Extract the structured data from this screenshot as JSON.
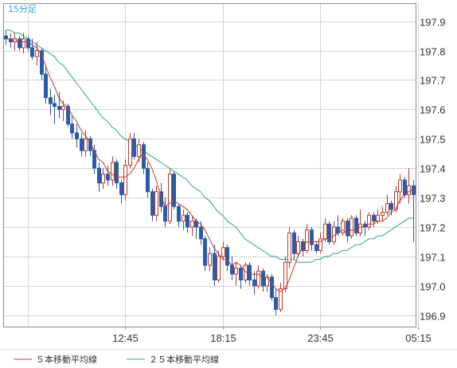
{
  "chart_data": {
    "type": "candlestick",
    "timeframe": "15分足",
    "x_tick_labels": [
      "12:45",
      "18:15",
      "23:45",
      "05:15"
    ],
    "y_tick_labels": [
      "197.9",
      "197.8",
      "197.7",
      "197.6",
      "197.5",
      "197.4",
      "197.3",
      "197.2",
      "197.1",
      "197.0",
      "196.9"
    ],
    "ylim": [
      196.86,
      197.96
    ],
    "grid": true,
    "legend_position": "bottom-left",
    "colors": {
      "up": "#c0392b",
      "down": "#2a5ca8",
      "ma5": "#c0392b",
      "ma25": "#2aa77f",
      "grid": "#d4d4d4",
      "frame": "#888888"
    },
    "series": [
      {
        "name": "５本移動平均線",
        "color": "#c0392b"
      },
      {
        "name": "２５本移動平均線",
        "color": "#2aa77f"
      }
    ],
    "candles": [
      [
        197.85,
        197.87,
        197.82,
        197.84
      ],
      [
        197.84,
        197.86,
        197.81,
        197.83
      ],
      [
        197.83,
        197.86,
        197.8,
        197.84
      ],
      [
        197.84,
        197.85,
        197.8,
        197.81
      ],
      [
        197.81,
        197.86,
        197.79,
        197.84
      ],
      [
        197.84,
        197.85,
        197.8,
        197.81
      ],
      [
        197.81,
        197.84,
        197.77,
        197.78
      ],
      [
        197.78,
        197.83,
        197.75,
        197.8
      ],
      [
        197.8,
        197.81,
        197.7,
        197.72
      ],
      [
        197.72,
        197.75,
        197.62,
        197.64
      ],
      [
        197.64,
        197.67,
        197.58,
        197.62
      ],
      [
        197.62,
        197.65,
        197.55,
        197.61
      ],
      [
        197.61,
        197.66,
        197.57,
        197.6
      ],
      [
        197.6,
        197.63,
        197.56,
        197.61
      ],
      [
        197.61,
        197.62,
        197.54,
        197.55
      ],
      [
        197.55,
        197.58,
        197.5,
        197.52
      ],
      [
        197.52,
        197.55,
        197.47,
        197.5
      ],
      [
        197.5,
        197.52,
        197.44,
        197.46
      ],
      [
        197.46,
        197.53,
        197.44,
        197.5
      ],
      [
        197.5,
        197.51,
        197.44,
        197.46
      ],
      [
        197.46,
        197.48,
        197.38,
        197.4
      ],
      [
        197.4,
        197.42,
        197.32,
        197.35
      ],
      [
        197.35,
        197.4,
        197.33,
        197.38
      ],
      [
        197.38,
        197.41,
        197.34,
        197.36
      ],
      [
        197.36,
        197.44,
        197.34,
        197.42
      ],
      [
        197.42,
        197.43,
        197.33,
        197.35
      ],
      [
        197.35,
        197.36,
        197.28,
        197.31
      ],
      [
        197.31,
        197.43,
        197.29,
        197.41
      ],
      [
        197.41,
        197.52,
        197.4,
        197.5
      ],
      [
        197.5,
        197.52,
        197.43,
        197.44
      ],
      [
        197.44,
        197.5,
        197.42,
        197.48
      ],
      [
        197.48,
        197.49,
        197.38,
        197.4
      ],
      [
        197.4,
        197.42,
        197.3,
        197.32
      ],
      [
        197.32,
        197.33,
        197.22,
        197.24
      ],
      [
        197.24,
        197.34,
        197.22,
        197.32
      ],
      [
        197.32,
        197.35,
        197.25,
        197.27
      ],
      [
        197.27,
        197.3,
        197.2,
        197.22
      ],
      [
        197.22,
        197.4,
        197.21,
        197.38
      ],
      [
        197.38,
        197.39,
        197.26,
        197.27
      ],
      [
        197.27,
        197.28,
        197.2,
        197.22
      ],
      [
        197.22,
        197.26,
        197.19,
        197.24
      ],
      [
        197.24,
        197.25,
        197.18,
        197.2
      ],
      [
        197.2,
        197.24,
        197.17,
        197.22
      ],
      [
        197.22,
        197.23,
        197.16,
        197.2
      ],
      [
        197.2,
        197.22,
        197.14,
        197.16
      ],
      [
        197.16,
        197.17,
        197.05,
        197.07
      ],
      [
        197.07,
        197.13,
        197.05,
        197.11
      ],
      [
        197.11,
        197.14,
        197.0,
        197.02
      ],
      [
        197.02,
        197.12,
        197.01,
        197.1
      ],
      [
        197.1,
        197.15,
        197.09,
        197.13
      ],
      [
        197.13,
        197.14,
        197.05,
        197.07
      ],
      [
        197.07,
        197.1,
        197.02,
        197.04
      ],
      [
        197.04,
        197.08,
        197.0,
        197.06
      ],
      [
        197.06,
        197.07,
        196.99,
        197.02
      ],
      [
        197.02,
        197.08,
        197.01,
        197.07
      ],
      [
        197.07,
        197.08,
        197.0,
        197.02
      ],
      [
        197.02,
        197.05,
        196.97,
        197.0
      ],
      [
        197.0,
        197.07,
        196.99,
        197.05
      ],
      [
        197.05,
        197.06,
        196.98,
        197.0
      ],
      [
        197.0,
        197.04,
        196.98,
        197.03
      ],
      [
        197.03,
        197.04,
        196.95,
        196.96
      ],
      [
        196.96,
        196.99,
        196.9,
        196.92
      ],
      [
        196.92,
        197.01,
        196.91,
        196.99
      ],
      [
        196.99,
        197.1,
        196.98,
        197.08
      ],
      [
        197.08,
        197.2,
        197.06,
        197.18
      ],
      [
        197.18,
        197.19,
        197.09,
        197.11
      ],
      [
        197.11,
        197.17,
        197.1,
        197.15
      ],
      [
        197.15,
        197.16,
        197.1,
        197.12
      ],
      [
        197.12,
        197.21,
        197.11,
        197.19
      ],
      [
        197.19,
        197.2,
        197.12,
        197.14
      ],
      [
        197.14,
        197.15,
        197.11,
        197.12
      ],
      [
        197.12,
        197.18,
        197.11,
        197.16
      ],
      [
        197.16,
        197.23,
        197.15,
        197.21
      ],
      [
        197.21,
        197.22,
        197.14,
        197.15
      ],
      [
        197.15,
        197.22,
        197.14,
        197.2
      ],
      [
        197.2,
        197.24,
        197.17,
        197.18
      ],
      [
        197.18,
        197.23,
        197.17,
        197.22
      ],
      [
        197.22,
        197.23,
        197.15,
        197.17
      ],
      [
        197.17,
        197.24,
        197.16,
        197.23
      ],
      [
        197.23,
        197.24,
        197.17,
        197.18
      ],
      [
        197.18,
        197.26,
        197.17,
        197.21
      ],
      [
        197.21,
        197.22,
        197.17,
        197.2
      ],
      [
        197.2,
        197.25,
        197.19,
        197.24
      ],
      [
        197.24,
        197.25,
        197.2,
        197.22
      ],
      [
        197.22,
        197.26,
        197.21,
        197.24
      ],
      [
        197.24,
        197.27,
        197.22,
        197.25
      ],
      [
        197.25,
        197.31,
        197.24,
        197.28
      ],
      [
        197.28,
        197.29,
        197.24,
        197.26
      ],
      [
        197.26,
        197.34,
        197.25,
        197.32
      ],
      [
        197.32,
        197.38,
        197.28,
        197.36
      ],
      [
        197.36,
        197.37,
        197.3,
        197.31
      ],
      [
        197.31,
        197.4,
        197.28,
        197.34
      ],
      [
        197.34,
        197.36,
        197.15,
        197.31
      ]
    ],
    "ma5": [
      197.84,
      197.84,
      197.83,
      197.83,
      197.83,
      197.83,
      197.82,
      197.81,
      197.79,
      197.75,
      197.71,
      197.68,
      197.64,
      197.62,
      197.61,
      197.58,
      197.56,
      197.53,
      197.51,
      197.49,
      197.46,
      197.43,
      197.42,
      197.39,
      197.38,
      197.37,
      197.37,
      197.37,
      197.38,
      197.4,
      197.43,
      197.45,
      197.43,
      197.4,
      197.36,
      197.31,
      197.27,
      197.28,
      197.29,
      197.28,
      197.27,
      197.26,
      197.24,
      197.22,
      197.21,
      197.19,
      197.16,
      197.13,
      197.11,
      197.09,
      197.09,
      197.07,
      197.08,
      197.07,
      197.05,
      197.04,
      197.04,
      197.04,
      197.03,
      197.03,
      197.01,
      196.99,
      196.98,
      196.99,
      197.02,
      197.06,
      197.1,
      197.13,
      197.15,
      197.15,
      197.15,
      197.15,
      197.16,
      197.16,
      197.17,
      197.18,
      197.19,
      197.18,
      197.19,
      197.19,
      197.2,
      197.2,
      197.21,
      197.21,
      197.22,
      197.22,
      197.23,
      197.25,
      197.26,
      197.29,
      197.31,
      197.32,
      197.33
    ],
    "ma25": [
      197.87,
      197.87,
      197.86,
      197.86,
      197.85,
      197.84,
      197.83,
      197.82,
      197.81,
      197.8,
      197.79,
      197.78,
      197.76,
      197.75,
      197.73,
      197.71,
      197.69,
      197.67,
      197.65,
      197.63,
      197.61,
      197.59,
      197.57,
      197.56,
      197.54,
      197.53,
      197.51,
      197.5,
      197.49,
      197.48,
      197.47,
      197.46,
      197.45,
      197.44,
      197.43,
      197.42,
      197.41,
      197.4,
      197.39,
      197.38,
      197.37,
      197.36,
      197.34,
      197.33,
      197.32,
      197.3,
      197.29,
      197.27,
      197.25,
      197.24,
      197.22,
      197.21,
      197.2,
      197.18,
      197.16,
      197.15,
      197.14,
      197.13,
      197.12,
      197.11,
      197.1,
      197.1,
      197.09,
      197.09,
      197.09,
      197.09,
      197.08,
      197.08,
      197.08,
      197.08,
      197.09,
      197.09,
      197.1,
      197.1,
      197.11,
      197.11,
      197.12,
      197.12,
      197.13,
      197.14,
      197.14,
      197.15,
      197.16,
      197.16,
      197.17,
      197.17,
      197.18,
      197.19,
      197.2,
      197.21,
      197.22,
      197.23,
      197.23
    ]
  }
}
